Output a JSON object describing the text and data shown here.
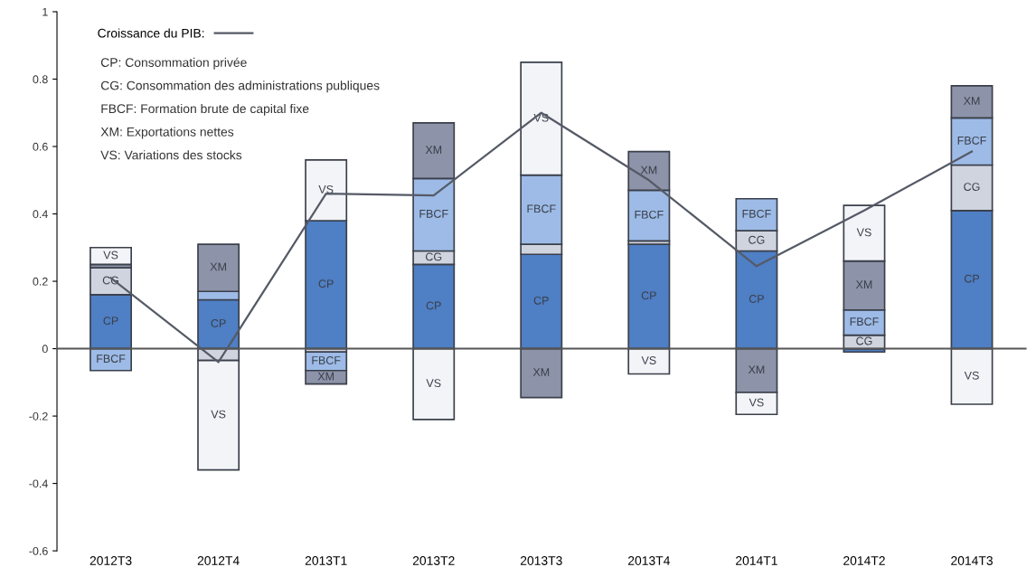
{
  "chart_data": {
    "type": "bar",
    "stacked": true,
    "categories": [
      "2012T3",
      "2012T4",
      "2013T1",
      "2013T2",
      "2013T3",
      "2013T4",
      "2014T1",
      "2014T2",
      "2014T3"
    ],
    "series": [
      {
        "name": "CP",
        "color": "#4f7fc4",
        "values": [
          0.16,
          0.145,
          0.38,
          0.25,
          0.28,
          0.31,
          0.29,
          -0.01,
          0.41
        ]
      },
      {
        "name": "CG",
        "color": "#d0d4de",
        "values": [
          0.08,
          -0.035,
          -0.01,
          0.04,
          0.03,
          0.01,
          0.06,
          0.04,
          0.135
        ]
      },
      {
        "name": "FBCF",
        "color": "#9dbbe6",
        "values": [
          -0.065,
          0.025,
          -0.055,
          0.215,
          0.205,
          0.15,
          0.095,
          0.075,
          0.14
        ]
      },
      {
        "name": "XM",
        "color": "#8d93a8",
        "values": [
          0.01,
          0.14,
          -0.04,
          0.165,
          -0.145,
          0.115,
          -0.13,
          0.145,
          0.095
        ]
      },
      {
        "name": "VS",
        "color": "#f2f4f8",
        "values": [
          0.05,
          -0.325,
          0.18,
          -0.21,
          0.335,
          -0.075,
          -0.065,
          0.165,
          -0.165
        ]
      },
      {
        "name": "Croissance du PIB:",
        "type": "line",
        "color": "#555a66",
        "values": [
          0.21,
          -0.04,
          0.46,
          0.455,
          0.7,
          0.5,
          0.245,
          0.41,
          0.585
        ]
      }
    ],
    "ylim": [
      -0.6,
      1
    ],
    "yticks": [
      -0.6,
      -0.4,
      -0.2,
      0,
      0.2,
      0.4,
      0.6,
      0.8,
      1
    ],
    "legend": "top left",
    "marker": "none",
    "annotations": [
      "CP: Consommation privée",
      "CG: Consommation des administrations publiques",
      "FBCF: Formation brute de capital fixe",
      "XM: Exportations nettes",
      "VS: Variations des stocks"
    ]
  }
}
